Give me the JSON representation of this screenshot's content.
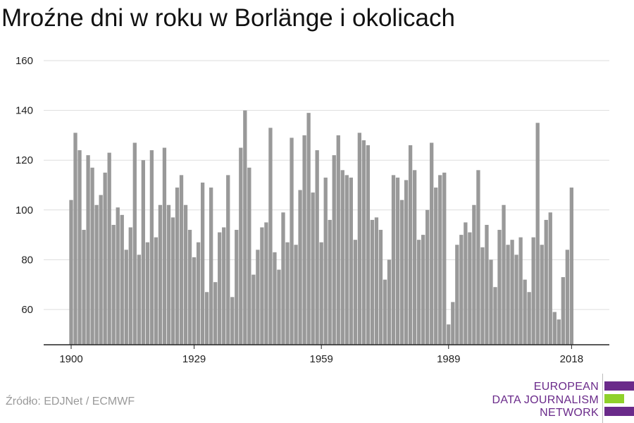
{
  "title": "Mroźne dni w roku w Borlänge i okolicach",
  "source": "Źródło: EDJNet / ECMWF",
  "logo": {
    "line1": "EUROPEAN",
    "line2": "DATA JOURNALISM",
    "line3": "NETWORK",
    "colors": [
      "#6a2a8a",
      "#8fd12b",
      "#6a2a8a"
    ]
  },
  "chart_data": {
    "type": "bar",
    "x_start": 1900,
    "x_ticks": [
      1900,
      1929,
      1959,
      1989,
      2018
    ],
    "y_ticks": [
      60,
      80,
      100,
      120,
      140,
      160
    ],
    "ylim": [
      46,
      163
    ],
    "bar_color": "#999999",
    "grid": true,
    "values": [
      104,
      131,
      124,
      92,
      122,
      117,
      102,
      106,
      115,
      123,
      94,
      101,
      98,
      84,
      93,
      127,
      82,
      120,
      87,
      124,
      89,
      102,
      125,
      102,
      97,
      109,
      114,
      102,
      92,
      81,
      87,
      111,
      67,
      109,
      71,
      91,
      93,
      114,
      65,
      92,
      125,
      140,
      117,
      74,
      84,
      93,
      95,
      133,
      83,
      76,
      99,
      87,
      129,
      86,
      108,
      130,
      139,
      107,
      124,
      87,
      113,
      96,
      122,
      130,
      116,
      114,
      113,
      88,
      131,
      128,
      126,
      96,
      97,
      92,
      72,
      80,
      114,
      113,
      104,
      112,
      126,
      116,
      88,
      90,
      100,
      127,
      109,
      114,
      115,
      54,
      63,
      86,
      90,
      95,
      91,
      102,
      116,
      85,
      94,
      80,
      69,
      92,
      102,
      86,
      88,
      82,
      89,
      72,
      67,
      89,
      135,
      86,
      96,
      99,
      59,
      56,
      73,
      84,
      109
    ]
  }
}
